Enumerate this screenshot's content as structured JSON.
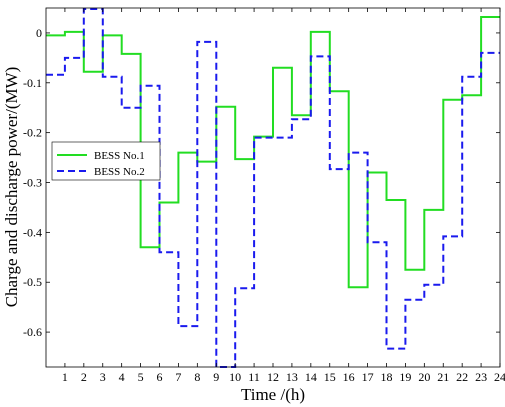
{
  "chart_data": {
    "type": "line",
    "step": true,
    "xlabel": "Time /(h)",
    "ylabel": "Charge and discharge power/(MW)",
    "xlim": [
      0,
      24
    ],
    "ylim": [
      -0.67,
      0.05
    ],
    "x_ticks": [
      "1",
      "2",
      "3",
      "4",
      "5",
      "6",
      "7",
      "8",
      "9",
      "10",
      "11",
      "12",
      "13",
      "14",
      "15",
      "16",
      "17",
      "18",
      "19",
      "20",
      "21",
      "22",
      "23",
      "24"
    ],
    "y_ticks": [
      "0",
      "-0.1",
      "-0.2",
      "-0.3",
      "-0.4",
      "-0.5",
      "-0.6"
    ],
    "grid": false,
    "legend_position": "center-left",
    "series": [
      {
        "name": "BESS No.1",
        "color": "#22dd22",
        "dash": "solid",
        "values": [
          -0.005,
          0.002,
          -0.078,
          -0.005,
          -0.042,
          -0.43,
          -0.34,
          -0.24,
          -0.258,
          -0.148,
          -0.253,
          -0.208,
          -0.07,
          -0.165,
          0.002,
          -0.117,
          -0.51,
          -0.28,
          -0.335,
          -0.475,
          -0.355,
          -0.134,
          -0.125,
          0.032
        ]
      },
      {
        "name": "BESS No.2",
        "color": "#1a1aee",
        "dash": "dashed",
        "values": [
          -0.084,
          -0.05,
          0.048,
          -0.088,
          -0.15,
          -0.106,
          -0.44,
          -0.588,
          -0.018,
          -0.67,
          -0.512,
          -0.21,
          -0.21,
          -0.173,
          -0.047,
          -0.273,
          -0.24,
          -0.42,
          -0.633,
          -0.535,
          -0.505,
          -0.408,
          -0.088,
          -0.04
        ]
      }
    ]
  }
}
